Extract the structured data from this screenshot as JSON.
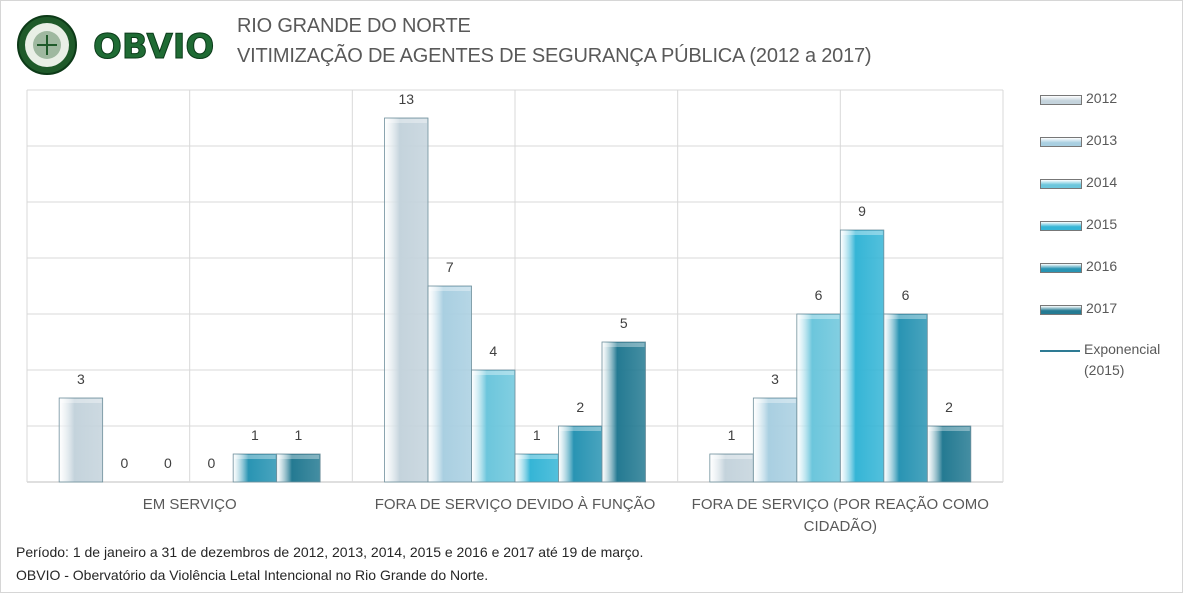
{
  "header": {
    "logo_text": "OBVIO",
    "title_line1": "RIO GRANDE DO NORTE",
    "title_line2": "VITIMIZAÇÃO DE AGENTES DE SEGURANÇA PÚBLICA (2012 a 2017)"
  },
  "footer": {
    "line1": "Período: 1 de janeiro a 31 de dezembros de 2012, 2013, 2014, 2015 e 2016 e 2017 até 19 de março.",
    "line2": "OBVIO - Obervatório da Violência Letal Intencional no Rio Grande do Norte."
  },
  "legend": {
    "trendline_label_1": "Exponencial",
    "trendline_label_2": "(2015)"
  },
  "colors": {
    "2012": "#c4d3dc",
    "2013": "#a9cfe1",
    "2014": "#6cc6dc",
    "2015": "#35b5d6",
    "2016": "#2994b3",
    "2017": "#247a92",
    "trendline": "#2e7b94",
    "grid": "#d9d9d9"
  },
  "chart_data": {
    "type": "bar",
    "title": "VITIMIZAÇÃO DE AGENTES DE SEGURANÇA PÚBLICA (2012 a 2017)",
    "categories": [
      "EM SERVIÇO",
      "FORA DE SERVIÇO DEVIDO À FUNÇÃO",
      "FORA DE SERVIÇO (POR REAÇÃO COMO CIDADÃO)"
    ],
    "category_label_lines": [
      [
        "EM SERVIÇO"
      ],
      [
        "FORA DE SERVIÇO DEVIDO À FUNÇÃO"
      ],
      [
        "FORA DE SERVIÇO (POR REAÇÃO COMO",
        "CIDADÃO)"
      ]
    ],
    "series": [
      {
        "name": "2012",
        "values": [
          3,
          13,
          1
        ]
      },
      {
        "name": "2013",
        "values": [
          0,
          7,
          3
        ]
      },
      {
        "name": "2014",
        "values": [
          0,
          4,
          6
        ]
      },
      {
        "name": "2015",
        "values": [
          0,
          1,
          9
        ]
      },
      {
        "name": "2016",
        "values": [
          1,
          2,
          6
        ]
      },
      {
        "name": "2017",
        "values": [
          1,
          5,
          2
        ]
      }
    ],
    "ylim": [
      0,
      14
    ],
    "grid": true,
    "legend_position": "right"
  }
}
